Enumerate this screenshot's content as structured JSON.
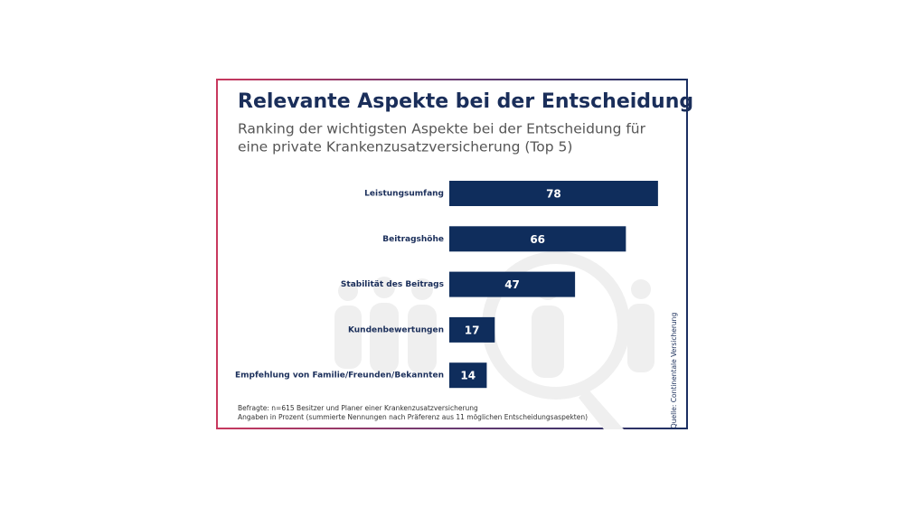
{
  "chart_data": {
    "type": "bar",
    "title": "Relevante Aspekte bei der Entscheidung",
    "subtitle": [
      "Ranking der wichtigsten Aspekte bei der Entscheidung für",
      "eine private Krankenzusatzversicherung (Top 5)"
    ],
    "categories": [
      "Leistungsumfang",
      "Beitragshöhe",
      "Stabilität des Beitrags",
      "Kundenbewertungen",
      "Empfehlung von Familie/Freunden/Bekannten"
    ],
    "values": [
      78,
      66,
      47,
      17,
      14
    ],
    "color": "#0f2d5c",
    "notes": [
      "Befragte: n=615 Besitzer und Planer einer Krankenzusatzversicherung",
      "Angaben in Prozent (summierte Nennungen nach Präferenz aus 11 möglichen Entscheidungsaspekten)"
    ],
    "source": "Quelle: Continentale Versicherung"
  }
}
